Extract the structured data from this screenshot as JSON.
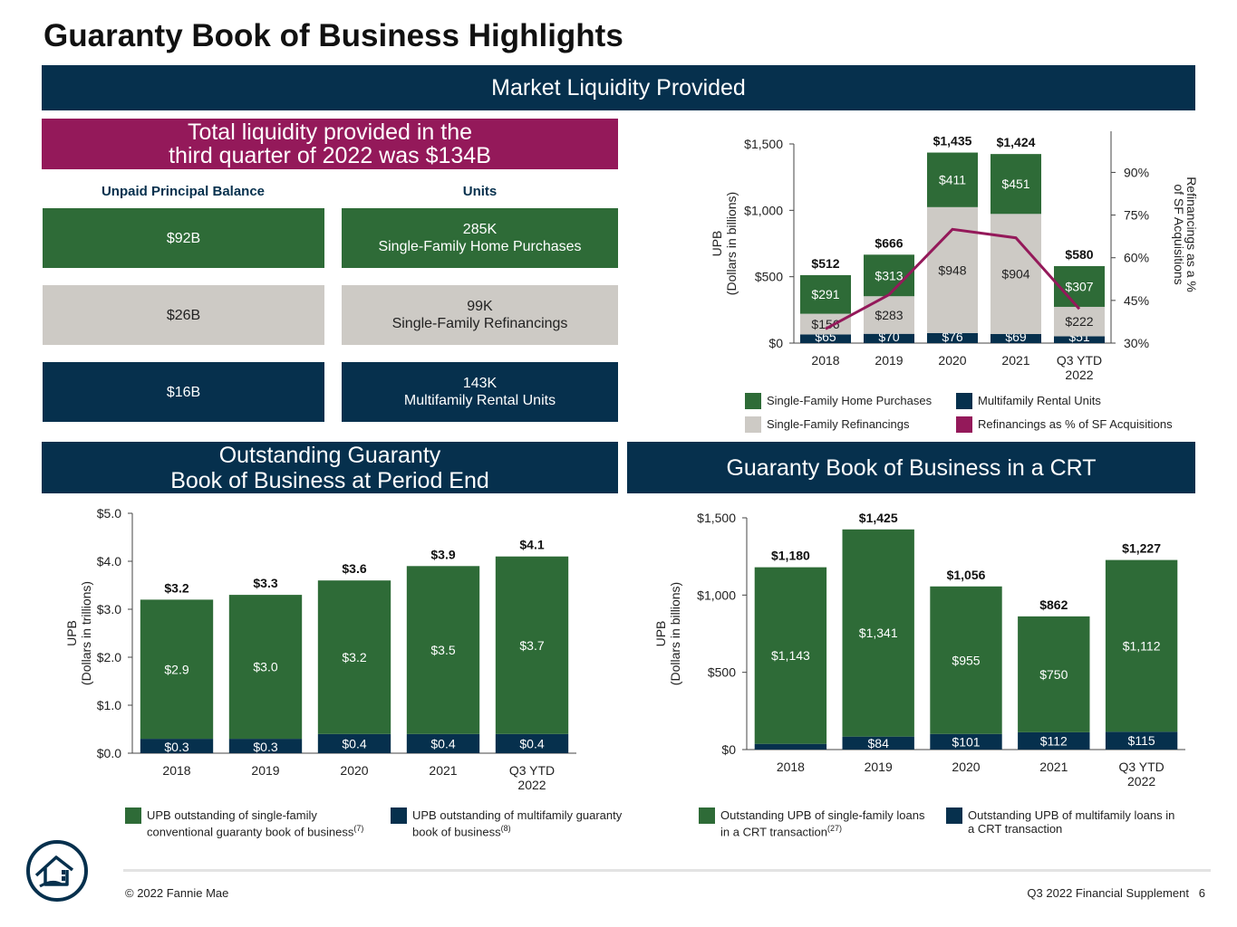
{
  "page": {
    "title": "Guaranty Book of Business Highlights",
    "banner_liquidity": "Market Liquidity Provided",
    "banner_outstanding": "Outstanding Guaranty\nBook of Business at Period End",
    "banner_crt": "Guaranty Book of Business in a CRT",
    "total_liquidity": "Total liquidity provided in the\nthird quarter of 2022 was $134B",
    "col_upb": "Unpaid Principal Balance",
    "col_units": "Units",
    "tiles": [
      {
        "upb": "$92B",
        "units": "285K\nSingle-Family Home Purchases"
      },
      {
        "upb": "$26B",
        "units": "99K\nSingle-Family Refinancings"
      },
      {
        "upb": "$16B",
        "units": "143K\nMultifamily Rental Units"
      }
    ],
    "copyright": "© 2022 Fannie Mae",
    "page_ref": "Q3 2022 Financial Supplement   6"
  },
  "colors": {
    "green": "#2e6b37",
    "gray": "#cdcac5",
    "navy": "#06304d",
    "magenta": "#94195a"
  },
  "icons": {
    "logo": "fannie-mae-house-logo"
  },
  "chart_data": [
    {
      "id": "liquidity",
      "type": "bar",
      "stacked": true,
      "categories": [
        "2018",
        "2019",
        "2020",
        "2021",
        "Q3 YTD\n2022"
      ],
      "ylabel": "UPB\n(Dollars in billions)",
      "y2label": "Refinancings as a %\nof SF Acquisitions",
      "ylim": [
        0,
        1500
      ],
      "yticks": [
        "$0",
        "$500",
        "$1,000",
        "$1,500"
      ],
      "y2lim": [
        30,
        100
      ],
      "y2ticks": [
        "30%",
        "45%",
        "60%",
        "75%",
        "90%"
      ],
      "series": [
        {
          "name": "Multifamily Rental Units",
          "color": "#06304d",
          "values": [
            65,
            70,
            76,
            69,
            51
          ],
          "labels": [
            "$65",
            "$70",
            "$76",
            "$69",
            "$51"
          ]
        },
        {
          "name": "Single-Family Refinancings",
          "color": "#cdcac5",
          "values": [
            156,
            283,
            948,
            904,
            222
          ],
          "labels": [
            "$156",
            "$283",
            "$948",
            "$904",
            "$222"
          ]
        },
        {
          "name": "Single-Family Home Purchases",
          "color": "#2e6b37",
          "values": [
            291,
            313,
            411,
            451,
            307
          ],
          "labels": [
            "$291",
            "$313",
            "$411",
            "$451",
            "$307"
          ]
        }
      ],
      "totals": [
        "$512",
        "$666",
        "$1,435",
        "$1,424",
        "$580"
      ],
      "line": {
        "name": "Refinancings as % of SF Acquisitions",
        "color": "#94195a",
        "values": [
          35,
          47,
          70,
          67,
          42
        ]
      },
      "legend": [
        {
          "name": "Single-Family Home Purchases",
          "color": "#2e6b37"
        },
        {
          "name": "Multifamily Rental Units",
          "color": "#06304d"
        },
        {
          "name": "Single-Family Refinancings",
          "color": "#cdcac5"
        },
        {
          "name": "Refinancings as % of SF Acquisitions",
          "color": "#94195a"
        }
      ]
    },
    {
      "id": "outstanding",
      "type": "bar",
      "stacked": true,
      "categories": [
        "2018",
        "2019",
        "2020",
        "2021",
        "Q3 YTD\n2022"
      ],
      "ylabel": "UPB\n(Dollars in trillions)",
      "ylim": [
        0,
        5
      ],
      "yticks": [
        "$0.0",
        "$1.0",
        "$2.0",
        "$3.0",
        "$4.0",
        "$5.0"
      ],
      "series": [
        {
          "name": "UPB outstanding of multifamily guaranty book of business",
          "color": "#06304d",
          "values": [
            0.3,
            0.3,
            0.4,
            0.4,
            0.4
          ],
          "labels": [
            "$0.3",
            "$0.3",
            "$0.4",
            "$0.4",
            "$0.4"
          ]
        },
        {
          "name": "UPB outstanding of single-family conventional guaranty book of business",
          "color": "#2e6b37",
          "values": [
            2.9,
            3.0,
            3.2,
            3.5,
            3.7
          ],
          "labels": [
            "$2.9",
            "$3.0",
            "$3.2",
            "$3.5",
            "$3.7"
          ]
        }
      ],
      "totals": [
        "$3.2",
        "$3.3",
        "$3.6",
        "$3.9",
        "$4.1"
      ],
      "legend": [
        {
          "text": "UPB outstanding of single-family\nconventional guaranty book of business",
          "sup": "(7)",
          "color": "#2e6b37"
        },
        {
          "text": "UPB outstanding of multifamily guaranty\nbook of business",
          "sup": "(8)",
          "color": "#06304d"
        }
      ]
    },
    {
      "id": "crt",
      "type": "bar",
      "stacked": true,
      "categories": [
        "2018",
        "2019",
        "2020",
        "2021",
        "Q3 YTD\n2022"
      ],
      "ylabel": "UPB\n(Dollars in billions)",
      "ylim": [
        0,
        1500
      ],
      "yticks": [
        "$0",
        "$500",
        "$1,000",
        "$1,500"
      ],
      "series": [
        {
          "name": "Outstanding UPB of multifamily loans in a CRT transaction",
          "color": "#06304d",
          "values": [
            37,
            84,
            101,
            112,
            115
          ],
          "labels": [
            "",
            "$84",
            "$101",
            "$112",
            "$115"
          ]
        },
        {
          "name": "Outstanding UPB of single-family loans in a CRT transaction",
          "color": "#2e6b37",
          "values": [
            1143,
            1341,
            955,
            750,
            1112
          ],
          "labels": [
            "$1,143",
            "$1,341",
            "$955",
            "$750",
            "$1,112"
          ]
        }
      ],
      "totals": [
        "$1,180",
        "$1,425",
        "$1,056",
        "$862",
        "$1,227"
      ],
      "legend": [
        {
          "text": "Outstanding UPB of single-family loans\nin a CRT transaction",
          "sup": "(27)",
          "color": "#2e6b37"
        },
        {
          "text": "Outstanding UPB of multifamily loans  in\na CRT transaction",
          "sup": "",
          "color": "#06304d"
        }
      ]
    }
  ]
}
